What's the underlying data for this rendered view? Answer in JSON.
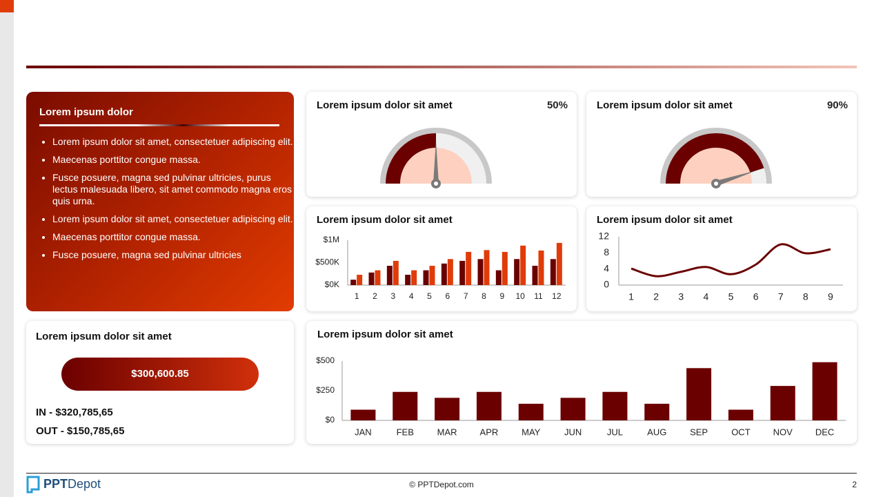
{
  "sidebar": {
    "title": "Lorem ipsum dolor",
    "bullets": [
      "Lorem ipsum dolor sit amet, consectetuer adipiscing elit.",
      "Maecenas porttitor congue massa.",
      "Fusce posuere, magna sed pulvinar ultricies, purus lectus malesuada libero, sit amet commodo magna eros quis urna.",
      "Lorem ipsum dolor sit amet, consectetuer adipiscing elit.",
      "Maecenas porttitor congue massa.",
      "Fusce posuere, magna sed pulvinar ultricies"
    ]
  },
  "summary": {
    "title": "Lorem ipsum dolor sit amet",
    "total": "$300,600.85",
    "in": "IN - $320,785,65",
    "out": "OUT - $150,785,65"
  },
  "chart_data": [
    {
      "type": "gauge",
      "title": "Lorem ipsum dolor sit amet",
      "value": 50,
      "value_label": "50%",
      "ylim": [
        0,
        100
      ],
      "color": "#6b0000",
      "label_color": "#d9400f"
    },
    {
      "type": "gauge",
      "title": "Lorem ipsum dolor sit amet",
      "value": 90,
      "value_label": "90%",
      "ylim": [
        0,
        100
      ],
      "color": "#6b0000",
      "label_color": "#e6a817"
    },
    {
      "type": "grouped-bar",
      "title": "Lorem ipsum dolor sit amet",
      "categories": [
        "1",
        "2",
        "3",
        "4",
        "5",
        "6",
        "7",
        "8",
        "9",
        "10",
        "11",
        "12"
      ],
      "series": [
        {
          "color": "#6b0000",
          "values": [
            120000,
            280000,
            430000,
            230000,
            330000,
            480000,
            540000,
            580000,
            330000,
            580000,
            430000,
            580000
          ]
        },
        {
          "color": "#e03c0a",
          "values": [
            230000,
            330000,
            540000,
            330000,
            430000,
            580000,
            740000,
            780000,
            740000,
            880000,
            770000,
            940000
          ]
        }
      ],
      "ylim": [
        0,
        1000000
      ],
      "yticks": [
        {
          "value": 0,
          "label": "$0K"
        },
        {
          "value": 500000,
          "label": "$500K"
        },
        {
          "value": 1000000,
          "label": "$1M"
        }
      ]
    },
    {
      "type": "line",
      "title": "Lorem ipsum dolor sit amet",
      "x": [
        1,
        2,
        3,
        4,
        5,
        6,
        7,
        8,
        9
      ],
      "values": [
        4.1,
        2.2,
        3.3,
        4.5,
        2.7,
        5.1,
        10.1,
        7.9,
        8.9
      ],
      "color": "#6b0000",
      "xlim": [
        0.5,
        9.5
      ],
      "xticks": [
        1,
        2,
        3,
        4,
        5,
        6,
        7,
        8,
        9
      ],
      "ylim": [
        0,
        12
      ],
      "yticks": [
        0,
        4,
        8,
        12
      ]
    },
    {
      "type": "bar",
      "title": "Lorem ipsum dolor sit amet",
      "categories": [
        "JAN",
        "FEB",
        "MAR",
        "APR",
        "MAY",
        "JUN",
        "JUL",
        "AUG",
        "SEP",
        "OCT",
        "NOV",
        "DEC"
      ],
      "values": [
        90,
        240,
        190,
        240,
        140,
        190,
        240,
        140,
        440,
        90,
        290,
        490
      ],
      "color": "#6b0000",
      "ylim": [
        0,
        500
      ],
      "yticks": [
        {
          "value": 0,
          "label": "$0"
        },
        {
          "value": 250,
          "label": "$250"
        },
        {
          "value": 500,
          "label": "$500"
        }
      ]
    }
  ],
  "footer": {
    "brand_bold": "PPT",
    "brand_rest": "Depot",
    "copyright": "© PPTDepot.com",
    "page": 2
  }
}
